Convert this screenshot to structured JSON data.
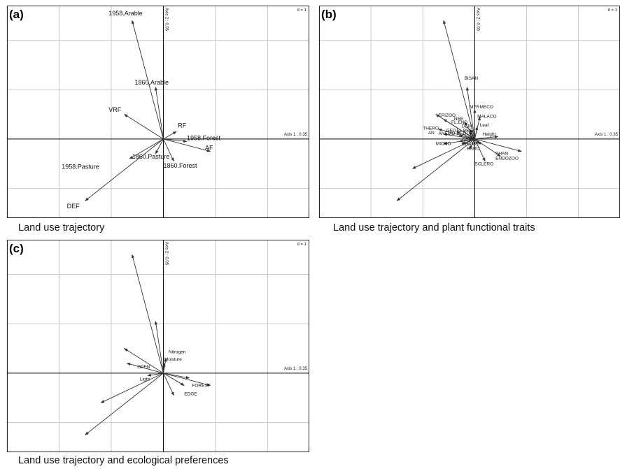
{
  "chart_data": [
    {
      "type": "scatter",
      "panel_label": "(a)",
      "caption": "Land use trajectory",
      "d_label": "d = 1",
      "axis1_label": "Axis 1 : 0.35",
      "axis2_label": "Axis 2 : 0.05",
      "xlim": [
        -3.0,
        2.8
      ],
      "ylim": [
        -1.6,
        2.7
      ],
      "grid": true,
      "label_size": 9,
      "arrows": [
        {
          "x": -0.6,
          "y": 2.4,
          "label": "1958.Arable",
          "lx": -1.05,
          "ly": 2.5
        },
        {
          "x": -0.15,
          "y": 1.05,
          "label": "1860.Arable",
          "lx": -0.55,
          "ly": 1.1
        },
        {
          "x": -0.75,
          "y": 0.5,
          "label": "VRF",
          "lx": -1.05,
          "ly": 0.55
        },
        {
          "x": 0.25,
          "y": 0.15,
          "label": "RF",
          "lx": 0.28,
          "ly": 0.23
        },
        {
          "x": 0.45,
          "y": -0.05,
          "label": "1958.Forest",
          "lx": 0.45,
          "ly": -0.02
        },
        {
          "x": 0.9,
          "y": -0.25,
          "label": "AF",
          "lx": 0.8,
          "ly": -0.22
        },
        {
          "x": -0.15,
          "y": -0.3,
          "label": "1860.Pasture",
          "lx": -0.6,
          "ly": -0.4
        },
        {
          "x": 0.2,
          "y": -0.45,
          "label": "1860.Forest",
          "lx": 0.0,
          "ly": -0.58
        },
        {
          "x": -0.65,
          "y": -0.4,
          "label": "1958.Pasture",
          "lx": -1.95,
          "ly": -0.6
        },
        {
          "x": -1.5,
          "y": -1.25,
          "label": "DEF",
          "lx": -1.85,
          "ly": -1.4
        }
      ]
    },
    {
      "type": "scatter",
      "panel_label": "(b)",
      "caption": "Land use trajectory and plant functional traits",
      "d_label": "d = 1",
      "axis1_label": "Axis 1 : 0.35",
      "axis2_label": "Axis 2 : 0.05",
      "xlim": [
        -3.0,
        2.8
      ],
      "ylim": [
        -1.6,
        2.7
      ],
      "grid": true,
      "label_size": 6.5,
      "arrows": [
        {
          "x": -0.6,
          "y": 2.4,
          "label": "",
          "lx": 0,
          "ly": 0
        },
        {
          "x": -0.15,
          "y": 1.05,
          "label": "BISAN",
          "lx": -0.2,
          "ly": 1.2
        },
        {
          "x": -0.75,
          "y": 0.5,
          "label": "EPIZOO",
          "lx": -0.7,
          "ly": 0.45
        },
        {
          "x": -0.6,
          "y": 0.4,
          "label": "NEE",
          "lx": -0.4,
          "ly": 0.38
        },
        {
          "x": 0.0,
          "y": 0.6,
          "label": "MYRMECO",
          "lx": -0.1,
          "ly": 0.62
        },
        {
          "x": 0.1,
          "y": 0.45,
          "label": "MALACO",
          "lx": 0.05,
          "ly": 0.43
        },
        {
          "x": -0.2,
          "y": 0.35,
          "label": "FL.END",
          "lx": -0.45,
          "ly": 0.31
        },
        {
          "x": 0.05,
          "y": 0.25,
          "label": "Leaf",
          "lx": 0.1,
          "ly": 0.25
        },
        {
          "x": -0.1,
          "y": 0.2,
          "label": "DEM",
          "lx": -0.25,
          "ly": 0.23
        },
        {
          "x": -0.7,
          "y": 0.2,
          "label": "THERO",
          "lx": -1.0,
          "ly": 0.19
        },
        {
          "x": -0.6,
          "y": 0.1,
          "label": "AN",
          "lx": -0.9,
          "ly": 0.1
        },
        {
          "x": -0.35,
          "y": 0.15,
          "label": "GEO",
          "lx": -0.55,
          "ly": 0.15
        },
        {
          "x": -0.1,
          "y": 0.15,
          "label": "FL.BEG",
          "lx": -0.35,
          "ly": 0.15
        },
        {
          "x": -0.3,
          "y": 0.08,
          "label": "ANEMO",
          "lx": -0.7,
          "ly": 0.08
        },
        {
          "x": -0.1,
          "y": 0.08,
          "label": "FL.DUR",
          "lx": -0.35,
          "ly": 0.08
        },
        {
          "x": 0.45,
          "y": 0.05,
          "label": "Height",
          "lx": 0.15,
          "ly": 0.07
        },
        {
          "x": -0.3,
          "y": -0.05,
          "label": "GRAM",
          "lx": -0.25,
          "ly": -0.05
        },
        {
          "x": -0.6,
          "y": -0.1,
          "label": "MICRO",
          "lx": -0.75,
          "ly": -0.12
        },
        {
          "x": -0.25,
          "y": -0.1,
          "label": "CHAM",
          "lx": -0.25,
          "ly": -0.13
        },
        {
          "x": 0.1,
          "y": -0.1,
          "label": "PER",
          "lx": -0.05,
          "ly": -0.12
        },
        {
          "x": -0.1,
          "y": -0.2,
          "label": "BARO",
          "lx": -0.15,
          "ly": -0.22
        },
        {
          "x": 0.9,
          "y": -0.25,
          "label": "PHAN",
          "lx": 0.4,
          "ly": -0.32
        },
        {
          "x": 0.5,
          "y": -0.35,
          "label": "ENDOZOO",
          "lx": 0.4,
          "ly": -0.42
        },
        {
          "x": 0.2,
          "y": -0.45,
          "label": "SCLERO",
          "lx": 0.0,
          "ly": -0.53
        },
        {
          "x": -1.2,
          "y": -0.6,
          "label": "",
          "lx": 0,
          "ly": 0
        },
        {
          "x": -1.5,
          "y": -1.25,
          "label": "",
          "lx": 0,
          "ly": 0
        }
      ]
    },
    {
      "type": "scatter",
      "panel_label": "(c)",
      "caption": "Land use trajectory and ecological preferences",
      "d_label": "d = 1",
      "axis1_label": "Axis 1 : 0.35",
      "axis2_label": "Axis 2 : 0.05",
      "xlim": [
        -3.0,
        2.8
      ],
      "ylim": [
        -1.6,
        2.7
      ],
      "grid": true,
      "label_size": 6.5,
      "arrows": [
        {
          "x": -0.6,
          "y": 2.4,
          "label": "",
          "lx": 0,
          "ly": 0
        },
        {
          "x": -0.15,
          "y": 1.05,
          "label": "",
          "lx": 0,
          "ly": 0
        },
        {
          "x": -0.75,
          "y": 0.5,
          "label": "",
          "lx": 0,
          "ly": 0
        },
        {
          "x": 0.05,
          "y": 0.3,
          "label": "Nitrogen",
          "lx": 0.1,
          "ly": 0.4
        },
        {
          "x": 0.02,
          "y": 0.2,
          "label": "Moisture",
          "lx": 0.02,
          "ly": 0.25
        },
        {
          "x": -0.7,
          "y": 0.2,
          "label": "OPEN",
          "lx": -0.5,
          "ly": 0.1
        },
        {
          "x": -0.3,
          "y": -0.05,
          "label": "Light",
          "lx": -0.45,
          "ly": -0.15
        },
        {
          "x": 0.5,
          "y": -0.1,
          "label": "FOREST",
          "lx": 0.55,
          "ly": -0.28
        },
        {
          "x": 0.4,
          "y": -0.25,
          "label": "EDGE",
          "lx": 0.4,
          "ly": -0.45
        },
        {
          "x": 0.9,
          "y": -0.25,
          "label": "",
          "lx": 0,
          "ly": 0
        },
        {
          "x": 0.2,
          "y": -0.45,
          "label": "",
          "lx": 0,
          "ly": 0
        },
        {
          "x": -1.2,
          "y": -0.6,
          "label": "",
          "lx": 0,
          "ly": 0
        },
        {
          "x": -1.5,
          "y": -1.25,
          "label": "",
          "lx": 0,
          "ly": 0
        }
      ]
    }
  ]
}
